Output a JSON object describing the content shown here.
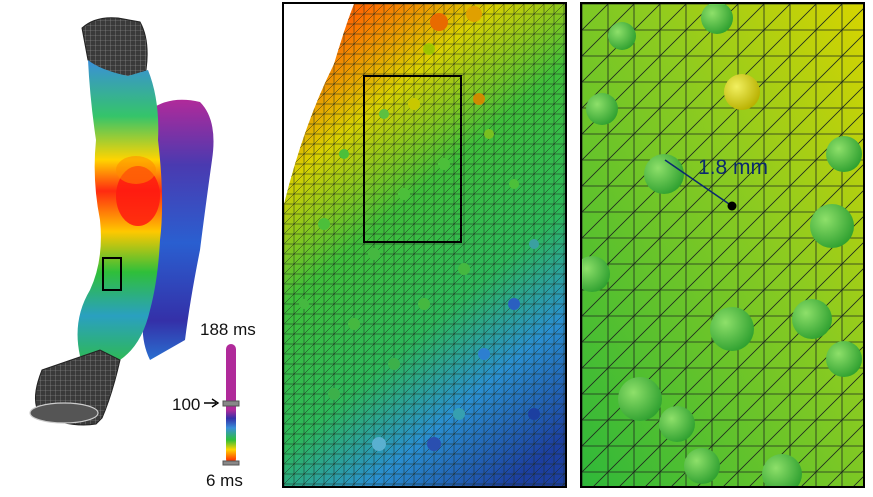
{
  "colorbar": {
    "max_label": "188 ms",
    "marker_label": "100",
    "min_label": "6 ms",
    "marker_value": 100,
    "min_value": 6,
    "max_value": 188,
    "colors": [
      "#ff0000",
      "#ffd400",
      "#2fbf3a",
      "#3a8fd9",
      "#3430a8",
      "#b02a9a"
    ]
  },
  "annotation": {
    "distance_label": "1.8 mm"
  },
  "palette": {
    "mesh_dark": "#333333",
    "mesh_line": "#1e2a1e",
    "sphere_green": "#55c23a"
  }
}
